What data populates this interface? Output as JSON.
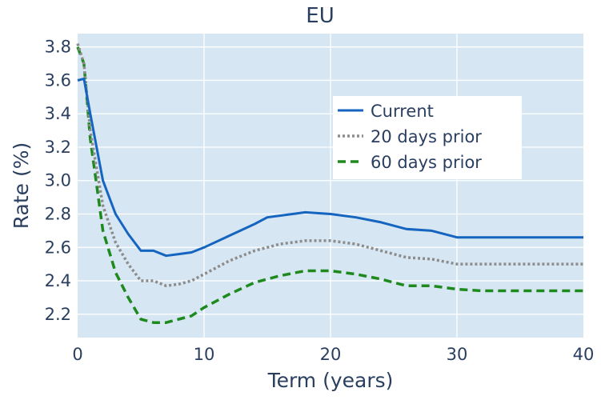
{
  "chart_data": {
    "type": "line",
    "title": "EU",
    "xlabel": "Term (years)",
    "ylabel": "Rate (%)",
    "xlim": [
      0,
      40
    ],
    "ylim": [
      2.06,
      3.88
    ],
    "x_ticks": [
      0,
      10,
      20,
      30,
      40
    ],
    "y_ticks": [
      2.2,
      2.4,
      2.6,
      2.8,
      3.0,
      3.2,
      3.4,
      3.6,
      3.8
    ],
    "y_tick_labels": [
      "2.2",
      "2.4",
      "2.6",
      "2.8",
      "3.0",
      "3.2",
      "3.4",
      "3.6",
      "3.8"
    ],
    "grid": true,
    "legend_position": "top-right",
    "background": "#d6e6f2",
    "series": [
      {
        "name": "Current",
        "color": "#1565c0",
        "dash": "solid",
        "x": [
          0,
          0.5,
          1,
          2,
          3,
          4,
          5,
          6,
          7,
          8,
          9,
          10,
          12,
          14,
          15,
          17,
          18,
          20,
          22,
          24,
          26,
          28,
          30,
          32,
          35,
          40
        ],
        "y": [
          3.6,
          3.61,
          3.4,
          3.0,
          2.8,
          2.68,
          2.58,
          2.58,
          2.55,
          2.56,
          2.57,
          2.6,
          2.67,
          2.74,
          2.78,
          2.8,
          2.81,
          2.8,
          2.78,
          2.75,
          2.71,
          2.7,
          2.66,
          2.66,
          2.66,
          2.66
        ]
      },
      {
        "name": "20 days prior",
        "color": "#8c8c8c",
        "dash": "dotted",
        "x": [
          0,
          0.5,
          1,
          2,
          3,
          4,
          5,
          6,
          7,
          8,
          9,
          10,
          12,
          14,
          16,
          18,
          20,
          22,
          24,
          26,
          28,
          30,
          32,
          35,
          40
        ],
        "y": [
          3.82,
          3.7,
          3.3,
          2.85,
          2.63,
          2.5,
          2.4,
          2.4,
          2.37,
          2.38,
          2.4,
          2.44,
          2.52,
          2.58,
          2.62,
          2.64,
          2.64,
          2.62,
          2.58,
          2.54,
          2.53,
          2.5,
          2.5,
          2.5,
          2.5
        ]
      },
      {
        "name": "60 days prior",
        "color": "#1e8a1e",
        "dash": "dashed",
        "x": [
          0,
          0.5,
          1,
          2,
          3,
          4,
          5,
          6,
          7,
          8,
          9,
          10,
          12,
          14,
          16,
          18,
          20,
          22,
          24,
          26,
          28,
          30,
          32,
          35,
          40
        ],
        "y": [
          3.8,
          3.7,
          3.25,
          2.7,
          2.45,
          2.3,
          2.17,
          2.15,
          2.15,
          2.17,
          2.19,
          2.24,
          2.32,
          2.39,
          2.43,
          2.46,
          2.46,
          2.44,
          2.41,
          2.37,
          2.37,
          2.35,
          2.34,
          2.34,
          2.34
        ]
      }
    ]
  }
}
